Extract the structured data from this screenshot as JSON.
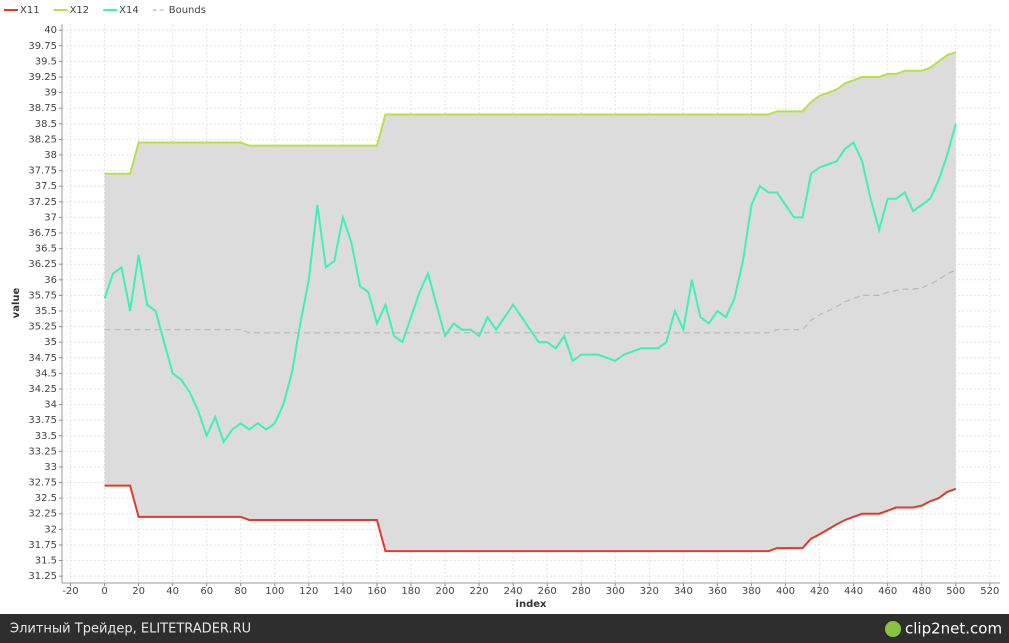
{
  "chart_data": {
    "type": "line",
    "x": [
      0,
      5,
      10,
      15,
      20,
      25,
      30,
      35,
      40,
      45,
      50,
      55,
      60,
      65,
      70,
      75,
      80,
      85,
      90,
      95,
      100,
      105,
      110,
      115,
      120,
      125,
      130,
      135,
      140,
      145,
      150,
      155,
      160,
      165,
      170,
      175,
      180,
      185,
      190,
      195,
      200,
      205,
      210,
      215,
      220,
      225,
      230,
      235,
      240,
      245,
      250,
      255,
      260,
      265,
      270,
      275,
      280,
      285,
      290,
      295,
      300,
      305,
      310,
      315,
      320,
      325,
      330,
      335,
      340,
      345,
      350,
      355,
      360,
      365,
      370,
      375,
      380,
      385,
      390,
      395,
      400,
      405,
      410,
      415,
      420,
      425,
      430,
      435,
      440,
      445,
      450,
      455,
      460,
      465,
      470,
      475,
      480,
      485,
      490,
      495,
      500
    ],
    "series": [
      {
        "name": "X11",
        "color": "#e03a2a",
        "values": [
          32.7,
          32.7,
          32.7,
          32.7,
          32.2,
          32.2,
          32.2,
          32.2,
          32.2,
          32.2,
          32.2,
          32.2,
          32.2,
          32.2,
          32.2,
          32.2,
          32.2,
          32.15,
          32.15,
          32.15,
          32.15,
          32.15,
          32.15,
          32.15,
          32.15,
          32.15,
          32.15,
          32.15,
          32.15,
          32.15,
          32.15,
          32.15,
          32.15,
          31.65,
          31.65,
          31.65,
          31.65,
          31.65,
          31.65,
          31.65,
          31.65,
          31.65,
          31.65,
          31.65,
          31.65,
          31.65,
          31.65,
          31.65,
          31.65,
          31.65,
          31.65,
          31.65,
          31.65,
          31.65,
          31.65,
          31.65,
          31.65,
          31.65,
          31.65,
          31.65,
          31.65,
          31.65,
          31.65,
          31.65,
          31.65,
          31.65,
          31.65,
          31.65,
          31.65,
          31.65,
          31.65,
          31.65,
          31.65,
          31.65,
          31.65,
          31.65,
          31.65,
          31.65,
          31.65,
          31.7,
          31.7,
          31.7,
          31.7,
          31.85,
          31.92,
          32.0,
          32.08,
          32.15,
          32.2,
          32.25,
          32.25,
          32.25,
          32.3,
          32.35,
          32.35,
          32.35,
          32.38,
          32.45,
          32.5,
          32.6,
          32.65
        ]
      },
      {
        "name": "X12",
        "color": "#b8e04a",
        "values": [
          37.7,
          37.7,
          37.7,
          37.7,
          38.2,
          38.2,
          38.2,
          38.2,
          38.2,
          38.2,
          38.2,
          38.2,
          38.2,
          38.2,
          38.2,
          38.2,
          38.2,
          38.15,
          38.15,
          38.15,
          38.15,
          38.15,
          38.15,
          38.15,
          38.15,
          38.15,
          38.15,
          38.15,
          38.15,
          38.15,
          38.15,
          38.15,
          38.15,
          38.65,
          38.65,
          38.65,
          38.65,
          38.65,
          38.65,
          38.65,
          38.65,
          38.65,
          38.65,
          38.65,
          38.65,
          38.65,
          38.65,
          38.65,
          38.65,
          38.65,
          38.65,
          38.65,
          38.65,
          38.65,
          38.65,
          38.65,
          38.65,
          38.65,
          38.65,
          38.65,
          38.65,
          38.65,
          38.65,
          38.65,
          38.65,
          38.65,
          38.65,
          38.65,
          38.65,
          38.65,
          38.65,
          38.65,
          38.65,
          38.65,
          38.65,
          38.65,
          38.65,
          38.65,
          38.65,
          38.7,
          38.7,
          38.7,
          38.7,
          38.85,
          38.95,
          39.0,
          39.05,
          39.15,
          39.2,
          39.25,
          39.25,
          39.25,
          39.3,
          39.3,
          39.35,
          39.35,
          39.35,
          39.4,
          39.5,
          39.6,
          39.65
        ]
      },
      {
        "name": "X14",
        "color": "#3ef0b8",
        "values": [
          35.7,
          36.1,
          36.2,
          35.5,
          36.4,
          35.6,
          35.5,
          35.0,
          34.5,
          34.4,
          34.2,
          33.9,
          33.5,
          33.8,
          33.4,
          33.6,
          33.7,
          33.6,
          33.7,
          33.6,
          33.7,
          34.0,
          34.5,
          35.3,
          36.0,
          37.2,
          36.2,
          36.3,
          37.0,
          36.6,
          35.9,
          35.8,
          35.3,
          35.6,
          35.1,
          35.0,
          35.4,
          35.8,
          36.1,
          35.6,
          35.1,
          35.3,
          35.2,
          35.2,
          35.1,
          35.4,
          35.2,
          35.4,
          35.6,
          35.4,
          35.2,
          35.0,
          35.0,
          34.9,
          35.1,
          34.7,
          34.8,
          34.8,
          34.8,
          34.75,
          34.7,
          34.8,
          34.85,
          34.9,
          34.9,
          34.9,
          35.0,
          35.5,
          35.2,
          36.0,
          35.4,
          35.3,
          35.5,
          35.4,
          35.7,
          36.3,
          37.2,
          37.5,
          37.4,
          37.4,
          37.2,
          37.0,
          37.0,
          37.7,
          37.8,
          37.85,
          37.9,
          38.1,
          38.2,
          37.9,
          37.3,
          36.8,
          37.3,
          37.3,
          37.4,
          37.1,
          37.2,
          37.3,
          37.6,
          38.0,
          38.5
        ]
      },
      {
        "name": "Bounds",
        "color": "#b8b8b8",
        "dash": true,
        "values": [
          35.2,
          35.2,
          35.2,
          35.2,
          35.2,
          35.2,
          35.2,
          35.2,
          35.2,
          35.2,
          35.2,
          35.2,
          35.2,
          35.2,
          35.2,
          35.2,
          35.2,
          35.15,
          35.15,
          35.15,
          35.15,
          35.15,
          35.15,
          35.15,
          35.15,
          35.15,
          35.15,
          35.15,
          35.15,
          35.15,
          35.15,
          35.15,
          35.15,
          35.15,
          35.15,
          35.15,
          35.15,
          35.15,
          35.15,
          35.15,
          35.15,
          35.15,
          35.15,
          35.15,
          35.15,
          35.15,
          35.15,
          35.15,
          35.15,
          35.15,
          35.15,
          35.15,
          35.15,
          35.15,
          35.15,
          35.15,
          35.15,
          35.15,
          35.15,
          35.15,
          35.15,
          35.15,
          35.15,
          35.15,
          35.15,
          35.15,
          35.15,
          35.15,
          35.15,
          35.15,
          35.15,
          35.15,
          35.15,
          35.15,
          35.15,
          35.15,
          35.15,
          35.15,
          35.15,
          35.2,
          35.2,
          35.2,
          35.2,
          35.35,
          35.44,
          35.5,
          35.57,
          35.65,
          35.7,
          35.75,
          35.75,
          35.75,
          35.8,
          35.83,
          35.85,
          35.85,
          35.87,
          35.93,
          36.0,
          36.1,
          36.15
        ]
      }
    ],
    "band_color": "#dcdcdc",
    "xlabel": "index",
    "ylabel": "value",
    "xlim": [
      -25,
      526
    ],
    "ylim": [
      31.14,
      40.1
    ],
    "xticks": [
      -20,
      0,
      20,
      40,
      60,
      80,
      100,
      120,
      140,
      160,
      180,
      200,
      220,
      240,
      260,
      280,
      300,
      320,
      340,
      360,
      380,
      400,
      420,
      440,
      460,
      480,
      500,
      520
    ],
    "yticks": [
      31.25,
      31.5,
      31.75,
      32,
      32.25,
      32.5,
      32.75,
      33,
      33.25,
      33.5,
      33.75,
      34,
      34.25,
      34.5,
      34.75,
      35,
      35.25,
      35.5,
      35.75,
      36,
      36.25,
      36.5,
      36.75,
      37,
      37.25,
      37.5,
      37.75,
      38,
      38.25,
      38.5,
      38.75,
      39,
      39.25,
      39.5,
      39.75,
      40
    ],
    "grid": true,
    "legend": "top-left"
  },
  "footer": {
    "left": "Элитный Трейдер, ELITETRADER.RU",
    "right": "clip2net.com"
  }
}
